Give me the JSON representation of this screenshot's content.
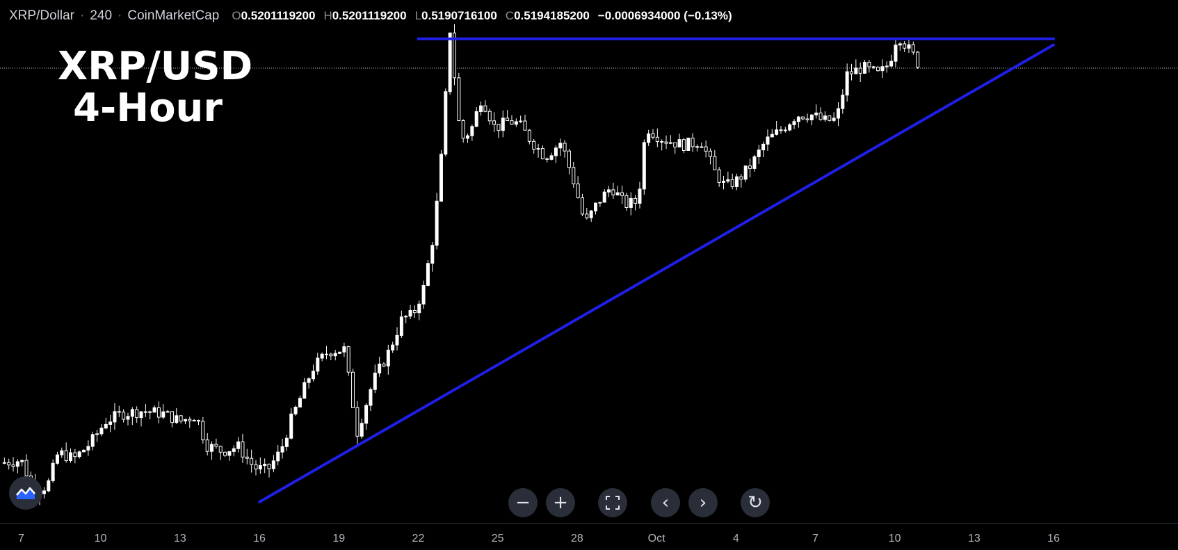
{
  "legend": {
    "symbol": "XRP/Dollar",
    "interval": "240",
    "source": "CoinMarketCap",
    "open_label": "O",
    "open": "0.5201119200",
    "high_label": "H",
    "high": "0.5201119200",
    "low_label": "L",
    "low": "0.5190716100",
    "close_label": "C",
    "close": "0.5194185200",
    "change": "−0.0006934000 (−0.13%)"
  },
  "overlay": {
    "line1": "XRP/USD",
    "line2": "4-Hour"
  },
  "nav": {
    "zoom_out": "−",
    "zoom_in": "+",
    "fit": "⛶",
    "scroll_left": "‹",
    "scroll_right": "›",
    "reset": "↻"
  },
  "icons": {
    "logo": "tradingview-logo-icon"
  },
  "colors": {
    "background": "#000000",
    "candle_up": "#ffffff",
    "candle_down": "#ffffff",
    "trendline": "#1f1fe8",
    "price_line": "#c8c8c8"
  },
  "chart_data": {
    "type": "candlestick",
    "title": "XRP/USD",
    "subtitle": "4-Hour",
    "y_range": [
      0.215,
      0.565
    ],
    "x_range_days": [
      6.2,
      50.7
    ],
    "x_ticks": [
      {
        "day": 7,
        "label": "7"
      },
      {
        "day": 10,
        "label": "10"
      },
      {
        "day": 13,
        "label": "13"
      },
      {
        "day": 16,
        "label": "16"
      },
      {
        "day": 19,
        "label": "19"
      },
      {
        "day": 22,
        "label": "22"
      },
      {
        "day": 25,
        "label": "25"
      },
      {
        "day": 28,
        "label": "28"
      },
      {
        "day": 31,
        "label": "Oct"
      },
      {
        "day": 34,
        "label": "4"
      },
      {
        "day": 37,
        "label": "7"
      },
      {
        "day": 40,
        "label": "10"
      },
      {
        "day": 43,
        "label": "13"
      },
      {
        "day": 46,
        "label": "16"
      }
    ],
    "last_price": 0.5194,
    "close_path": [
      [
        6.2,
        0.255
      ],
      [
        7.0,
        0.257
      ],
      [
        7.5,
        0.236
      ],
      [
        8.0,
        0.24
      ],
      [
        8.4,
        0.262
      ],
      [
        9.0,
        0.258
      ],
      [
        9.6,
        0.268
      ],
      [
        10.2,
        0.283
      ],
      [
        10.8,
        0.288
      ],
      [
        11.6,
        0.29
      ],
      [
        12.4,
        0.288
      ],
      [
        13.0,
        0.283
      ],
      [
        13.6,
        0.287
      ],
      [
        14.0,
        0.267
      ],
      [
        14.6,
        0.263
      ],
      [
        15.2,
        0.266
      ],
      [
        15.8,
        0.252
      ],
      [
        16.3,
        0.25
      ],
      [
        16.8,
        0.263
      ],
      [
        17.2,
        0.284
      ],
      [
        18.0,
        0.318
      ],
      [
        18.6,
        0.33
      ],
      [
        19.2,
        0.331
      ],
      [
        19.7,
        0.276
      ],
      [
        20.3,
        0.31
      ],
      [
        20.9,
        0.33
      ],
      [
        21.4,
        0.352
      ],
      [
        21.8,
        0.354
      ],
      [
        22.2,
        0.372
      ],
      [
        22.6,
        0.41
      ],
      [
        22.9,
        0.465
      ],
      [
        23.2,
        0.545
      ],
      [
        23.6,
        0.471
      ],
      [
        24.0,
        0.478
      ],
      [
        24.4,
        0.5
      ],
      [
        24.9,
        0.479
      ],
      [
        25.4,
        0.484
      ],
      [
        25.8,
        0.482
      ],
      [
        26.3,
        0.47
      ],
      [
        26.8,
        0.46
      ],
      [
        27.4,
        0.47
      ],
      [
        27.9,
        0.442
      ],
      [
        28.3,
        0.415
      ],
      [
        28.8,
        0.43
      ],
      [
        29.3,
        0.44
      ],
      [
        29.8,
        0.428
      ],
      [
        30.3,
        0.43
      ],
      [
        30.6,
        0.48
      ],
      [
        31.2,
        0.472
      ],
      [
        32.0,
        0.468
      ],
      [
        32.7,
        0.47
      ],
      [
        33.2,
        0.45
      ],
      [
        33.6,
        0.44
      ],
      [
        34.1,
        0.445
      ],
      [
        34.6,
        0.455
      ],
      [
        35.1,
        0.47
      ],
      [
        35.7,
        0.478
      ],
      [
        36.3,
        0.488
      ],
      [
        36.9,
        0.488
      ],
      [
        37.3,
        0.484
      ],
      [
        37.8,
        0.485
      ],
      [
        38.2,
        0.515
      ],
      [
        38.8,
        0.52
      ],
      [
        39.4,
        0.515
      ],
      [
        39.8,
        0.523
      ],
      [
        40.1,
        0.542
      ],
      [
        40.4,
        0.535
      ],
      [
        40.7,
        0.528
      ],
      [
        41.0,
        0.519
      ]
    ],
    "series": [
      {
        "name": "",
        "type": "trendline",
        "points": [
          [
            16.0,
            0.229
          ],
          [
            46.0,
            0.535
          ]
        ]
      },
      {
        "name": "",
        "type": "trendline",
        "points": [
          [
            22.0,
            0.539
          ],
          [
            46.0,
            0.539
          ]
        ]
      }
    ]
  }
}
